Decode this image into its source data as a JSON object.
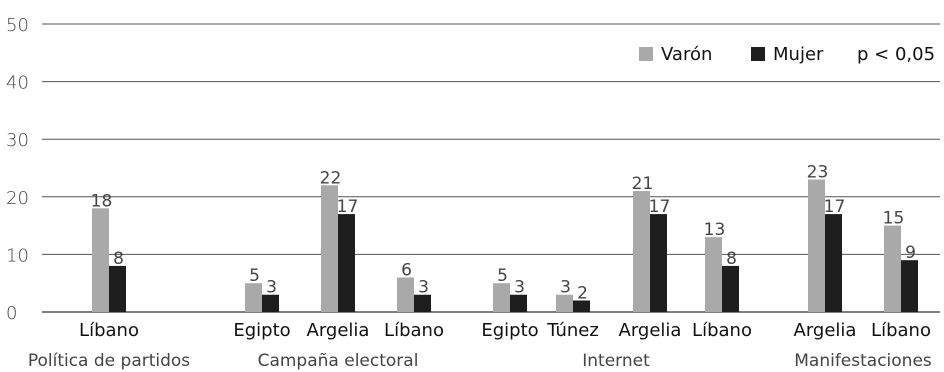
{
  "chart_data": {
    "type": "bar",
    "ylim": [
      0,
      50
    ],
    "yticks": [
      "0",
      "10",
      "20",
      "30",
      "40",
      "50"
    ],
    "grid": true,
    "legend": {
      "placement": "top-right",
      "items": [
        {
          "name": "Varón",
          "color": "#a9a9a9"
        },
        {
          "name": "Mujer",
          "color": "#1e1e1e"
        }
      ],
      "note": "p < 0,05"
    },
    "groups": [
      {
        "label": "Política de partidos",
        "bars": [
          {
            "category": "Líbano",
            "varon": 18,
            "mujer": 8
          }
        ]
      },
      {
        "label": "Campaña electoral",
        "bars": [
          {
            "category": "Egipto",
            "varon": 5,
            "mujer": 3
          },
          {
            "category": "Argelia",
            "varon": 22,
            "mujer": 17
          },
          {
            "category": "Líbano",
            "varon": 6,
            "mujer": 3
          }
        ]
      },
      {
        "label": "Internet",
        "bars": [
          {
            "category": "Egipto",
            "varon": 5,
            "mujer": 3
          },
          {
            "category": "Túnez",
            "varon": 3,
            "mujer": 2
          },
          {
            "category": "Argelia",
            "varon": 21,
            "mujer": 17
          },
          {
            "category": "Líbano",
            "varon": 13,
            "mujer": 8
          }
        ]
      },
      {
        "label": "Manifestaciones",
        "bars": [
          {
            "category": "Argelia",
            "varon": 23,
            "mujer": 17
          },
          {
            "category": "Líbano",
            "varon": 15,
            "mujer": 9
          }
        ]
      }
    ]
  }
}
